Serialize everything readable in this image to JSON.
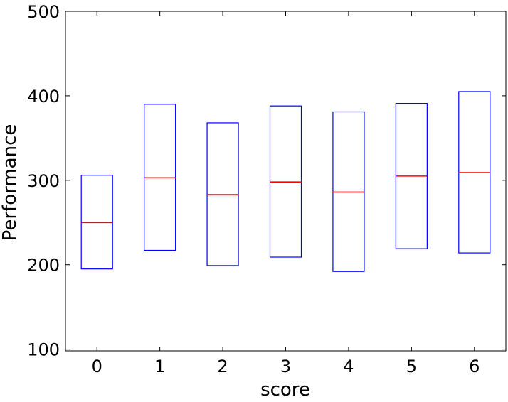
{
  "chart_data": {
    "type": "box",
    "xlabel": "score",
    "ylabel": "Performance",
    "ylim": [
      98,
      500
    ],
    "yticks": [
      100,
      200,
      300,
      400,
      500
    ],
    "categories": [
      "0",
      "1",
      "2",
      "3",
      "4",
      "5",
      "6"
    ],
    "boxes": [
      {
        "q1": 195,
        "median": 250,
        "q3": 306
      },
      {
        "q1": 217,
        "median": 303,
        "q3": 390
      },
      {
        "q1": 199,
        "median": 283,
        "q3": 368
      },
      {
        "q1": 209,
        "median": 298,
        "q3": 388
      },
      {
        "q1": 192,
        "median": 286,
        "q3": 381
      },
      {
        "q1": 219,
        "median": 305,
        "q3": 391
      },
      {
        "q1": 214,
        "median": 309,
        "q3": 405
      }
    ],
    "colors": {
      "box": "#0000ff",
      "median": "#ff0000",
      "axes": "#000000"
    }
  }
}
